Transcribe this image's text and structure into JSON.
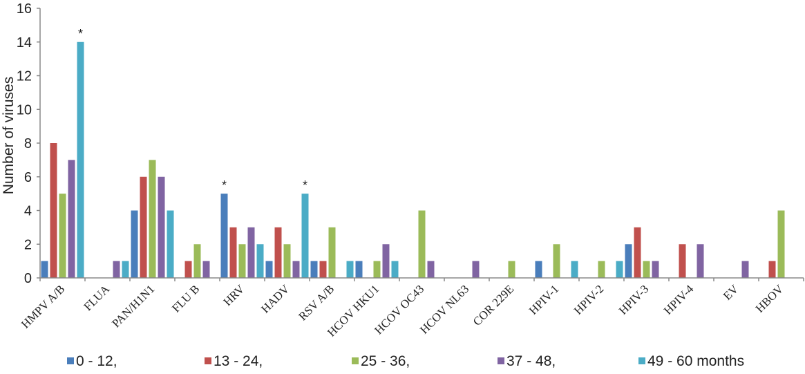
{
  "chart_data": {
    "type": "bar",
    "title": "",
    "xlabel": "",
    "ylabel": "Number of viruses",
    "ylim": [
      0,
      16
    ],
    "yticks": [
      "0",
      "2",
      "4",
      "6",
      "8",
      "10",
      "12",
      "14",
      "16"
    ],
    "grid": false,
    "legend_position": "bottom",
    "categories": [
      "HMPV A/B",
      "FLUA",
      "PAN/H1N1",
      "FLU B",
      "HRV",
      "HADV",
      "RSV A/B",
      "HCOV HKU1",
      "HCOV OC43",
      "HCOV NL63",
      "COR 229E",
      "HPIV-1",
      "HPIV-2",
      "HPIV-3",
      "HPIV-4",
      "EV",
      "HBOV"
    ],
    "series": [
      {
        "name": "0 - 12,",
        "color": "#4a7ebb",
        "values": [
          1,
          0,
          4,
          0,
          5,
          1,
          1,
          1,
          0,
          0,
          0,
          1,
          0,
          2,
          0,
          0,
          0
        ]
      },
      {
        "name": "13 - 24,",
        "color": "#c0504d",
        "values": [
          8,
          0,
          6,
          1,
          3,
          3,
          1,
          0,
          0,
          0,
          0,
          0,
          0,
          3,
          2,
          0,
          1
        ]
      },
      {
        "name": "25 - 36,",
        "color": "#9bbb59",
        "values": [
          5,
          0,
          7,
          2,
          2,
          2,
          3,
          1,
          4,
          0,
          1,
          2,
          1,
          1,
          0,
          0,
          4
        ]
      },
      {
        "name": "37 - 48,",
        "color": "#8064a2",
        "values": [
          7,
          1,
          6,
          1,
          3,
          1,
          0,
          2,
          1,
          1,
          0,
          0,
          0,
          1,
          2,
          1,
          0
        ]
      },
      {
        "name": "49 - 60 months",
        "color": "#4bacc6",
        "values": [
          14,
          1,
          4,
          0,
          2,
          5,
          1,
          1,
          0,
          0,
          0,
          1,
          1,
          0,
          0,
          0,
          0
        ]
      }
    ],
    "annotations": [
      {
        "category": "HMPV A/B",
        "series": 4,
        "text": "*"
      },
      {
        "category": "HRV",
        "series": 0,
        "text": "*"
      },
      {
        "category": "HADV",
        "series": 4,
        "text": "*"
      }
    ]
  }
}
